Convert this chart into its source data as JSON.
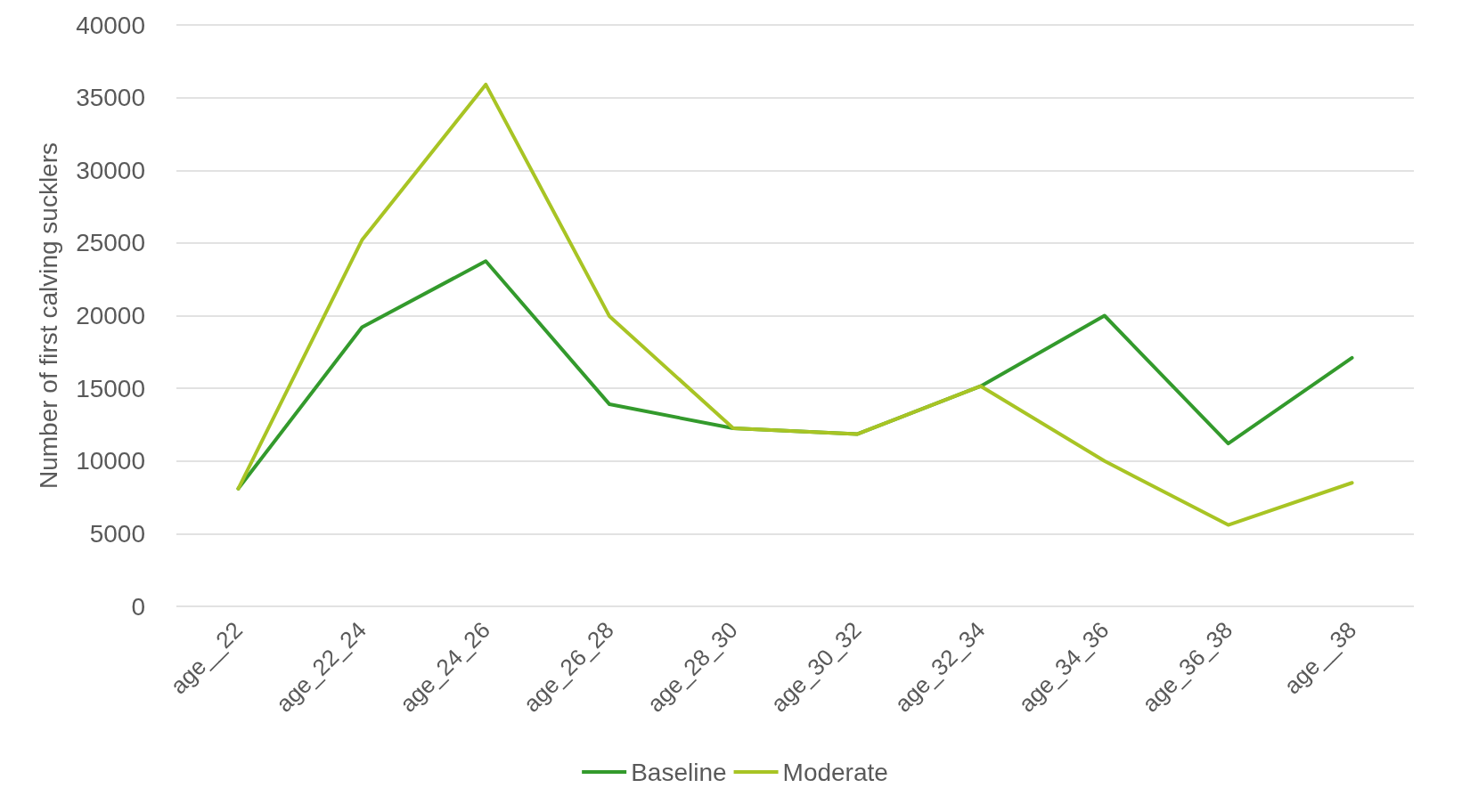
{
  "chart_data": {
    "type": "line",
    "ylabel": "Number of first calving sucklers",
    "categories": [
      "age__22",
      "age_22_24",
      "age_24_26",
      "age_26_28",
      "age_28_30",
      "age_30_32",
      "age_32_34",
      "age_34_36",
      "age_36_38",
      "age__38"
    ],
    "series": [
      {
        "name": "Baseline",
        "color": "#339a2c",
        "values": [
          8100,
          19200,
          23750,
          13900,
          12250,
          11850,
          15150,
          20000,
          11200,
          17100
        ]
      },
      {
        "name": "Moderate",
        "color": "#a8c424",
        "values": [
          8100,
          25200,
          35900,
          19950,
          12250,
          11850,
          15150,
          10000,
          5600,
          8500
        ]
      }
    ],
    "ylim": [
      0,
      40000
    ],
    "yticks": [
      0,
      5000,
      10000,
      15000,
      20000,
      25000,
      30000,
      35000,
      40000
    ],
    "grid": "y",
    "legend": "bottom",
    "marker": "none",
    "line_style": "solid"
  }
}
